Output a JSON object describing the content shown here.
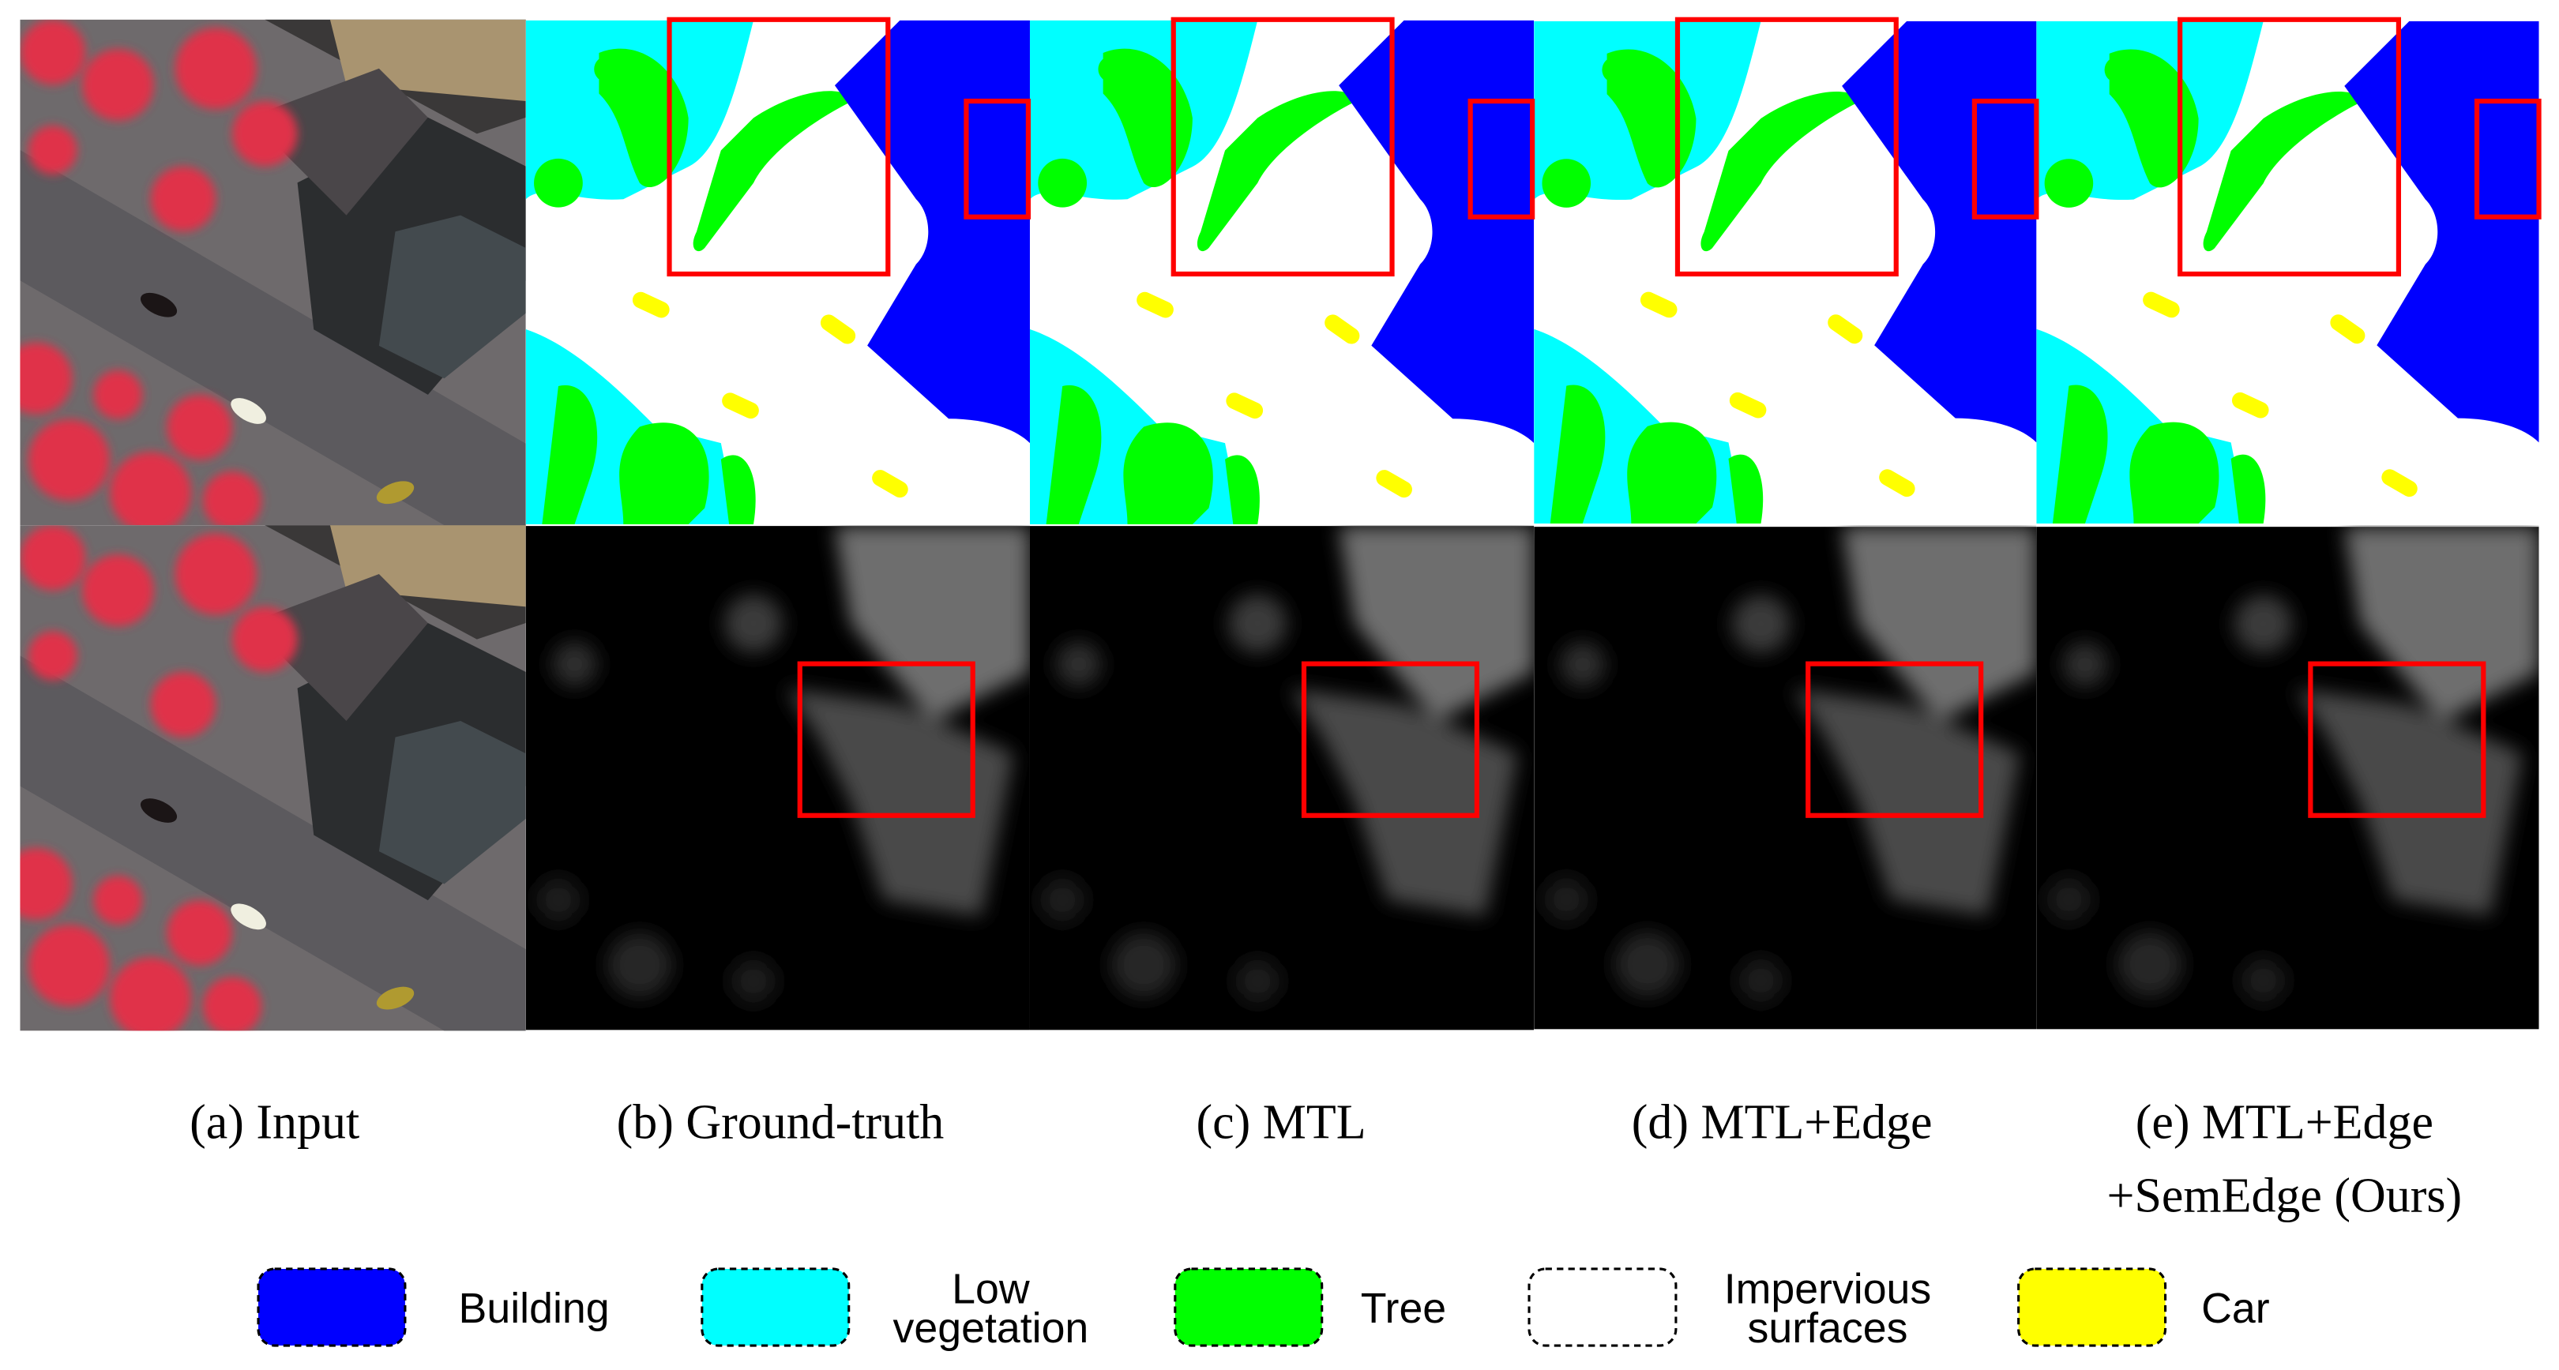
{
  "captions": [
    {
      "lines": [
        "(a) Input"
      ]
    },
    {
      "lines": [
        "(b) Ground-truth"
      ]
    },
    {
      "lines": [
        "(c) MTL"
      ]
    },
    {
      "lines": [
        "(d) MTL+Edge"
      ]
    },
    {
      "lines": [
        "(e) MTL+Edge",
        "+SemEdge (Ours)"
      ]
    }
  ],
  "legend": [
    {
      "lines": [
        "Building"
      ],
      "color": "#0000ff"
    },
    {
      "lines": [
        "Low",
        "vegetation"
      ],
      "color": "#00ffff"
    },
    {
      "lines": [
        "Tree"
      ],
      "color": "#00ff00"
    },
    {
      "lines": [
        "Impervious",
        "surfaces"
      ],
      "color": "#ffffff"
    },
    {
      "lines": [
        "Car"
      ],
      "color": "#ffff00"
    }
  ]
}
